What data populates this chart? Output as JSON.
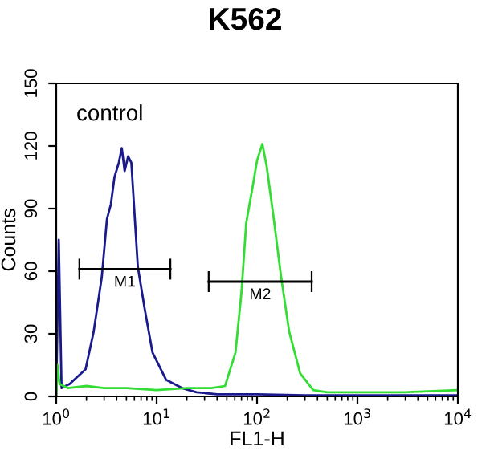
{
  "chart_data": {
    "type": "line",
    "title": "K562",
    "xlabel": "FL1-H",
    "ylabel": "Counts",
    "log": "x",
    "xlim": [
      1,
      10000
    ],
    "ylim": [
      0,
      150
    ],
    "xticks": [
      {
        "value": 1,
        "label": "10$^{0}$"
      },
      {
        "value": 10,
        "label": "10$^{1}$"
      },
      {
        "value": 100,
        "label": "10$^{2}$"
      },
      {
        "value": 1000,
        "label": "10$^{3}$"
      },
      {
        "value": 10000,
        "label": "10$^{4}$"
      }
    ],
    "yticks": [
      0,
      30,
      60,
      90,
      120,
      150
    ],
    "grid": false,
    "legend": false,
    "marker": "none",
    "line_style": "solid",
    "annotations": [
      "control"
    ],
    "series": [
      {
        "color": "#1a1a8c",
        "x": [
          1.0,
          1.06,
          1.13,
          1.36,
          1.96,
          2.36,
          2.84,
          3.2,
          3.5,
          3.8,
          4.2,
          4.5,
          4.8,
          5.2,
          5.6,
          6.5,
          7.6,
          9.1,
          12.4,
          17.9,
          25,
          40,
          70,
          100,
          300,
          1000,
          3000,
          10000
        ],
        "values": [
          0,
          75,
          4,
          6,
          13,
          31,
          57,
          85,
          92,
          105,
          112,
          119,
          108,
          115,
          112,
          62,
          42,
          21,
          8,
          4,
          2,
          1,
          1,
          1,
          0.5,
          0.5,
          0.5,
          0.5
        ]
      },
      {
        "color": "#33dd33",
        "x": [
          1.0,
          1.03,
          1.08,
          1.3,
          2,
          3,
          5,
          10,
          20,
          35,
          48,
          61,
          70,
          78,
          90,
          100,
          113,
          125,
          145,
          174,
          209,
          269,
          363,
          500,
          1000,
          3000,
          10000
        ],
        "values": [
          0,
          15,
          6,
          4,
          5,
          4,
          4,
          3,
          4,
          4,
          5,
          21,
          50,
          83,
          100,
          113,
          121,
          110,
          87,
          57,
          31,
          11,
          3,
          2,
          2,
          2,
          3
        ]
      },
      {
        "name": "M1",
        "color": "#000000",
        "x": [
          1.7,
          13.7
        ],
        "values": [
          61,
          61
        ],
        "errors": [
          5,
          5
        ]
      },
      {
        "name": "M2",
        "color": "#000000",
        "x": [
          33,
          350
        ],
        "values": [
          55,
          55
        ],
        "errors": [
          5,
          5
        ]
      }
    ]
  }
}
